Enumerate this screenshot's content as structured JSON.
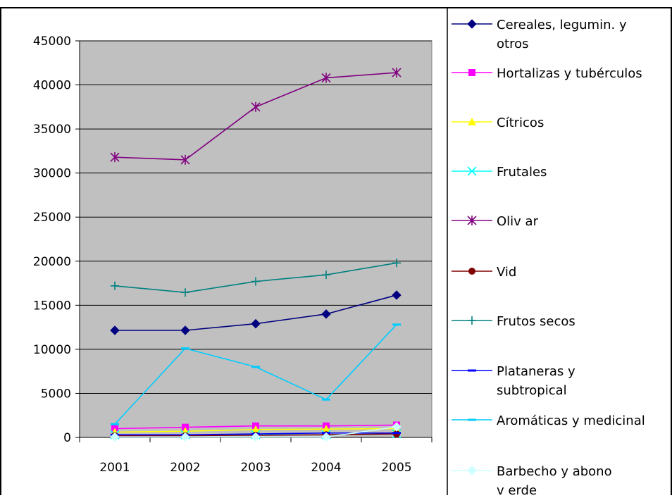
{
  "chart_data": {
    "type": "line",
    "categories": [
      "2001",
      "2002",
      "2003",
      "2004",
      "2005"
    ],
    "ylim": [
      0,
      45000
    ],
    "yticks": [
      0,
      5000,
      10000,
      15000,
      20000,
      25000,
      30000,
      35000,
      40000,
      45000
    ],
    "grid": true,
    "legend_position": "right",
    "plot_background": "#c0c0c0",
    "series": [
      {
        "name": "Cereales, legumin. y otros",
        "legend_lines": [
          "Cereales, legumin. y",
          "otros"
        ],
        "color": "#000080",
        "marker": "diamond",
        "values": [
          12150,
          12150,
          12900,
          14000,
          16150
        ]
      },
      {
        "name": "Hortalizas y tubérculos",
        "legend_lines": [
          "Hortalizas y tubérculos"
        ],
        "color": "#ff00ff",
        "marker": "square",
        "values": [
          1000,
          1150,
          1300,
          1300,
          1400
        ]
      },
      {
        "name": "Cítricos",
        "legend_lines": [
          "Cítricos"
        ],
        "color": "#ffff00",
        "marker": "triangle",
        "values": [
          600,
          700,
          900,
          950,
          1000
        ]
      },
      {
        "name": "Frutales",
        "legend_lines": [
          "Frutales"
        ],
        "color": "#00ffff",
        "marker": "x",
        "values": [
          300,
          300,
          300,
          300,
          400
        ]
      },
      {
        "name": "Olivar",
        "legend_lines": [
          "Oliv ar"
        ],
        "color": "#800080",
        "marker": "star",
        "values": [
          31800,
          31500,
          37500,
          40800,
          41400
        ]
      },
      {
        "name": "Vid",
        "legend_lines": [
          "Vid"
        ],
        "color": "#800000",
        "marker": "circle",
        "values": [
          200,
          200,
          250,
          300,
          400
        ]
      },
      {
        "name": "Frutos secos",
        "legend_lines": [
          "Frutos secos"
        ],
        "color": "#008080",
        "marker": "plus",
        "values": [
          17200,
          16450,
          17700,
          18450,
          19800
        ]
      },
      {
        "name": "Plataneras y subtropical",
        "legend_lines": [
          "Plataneras y",
          "subtropical"
        ],
        "color": "#0000ff",
        "marker": "dash",
        "values": [
          300,
          300,
          400,
          500,
          500
        ]
      },
      {
        "name": "Aromáticas y medicinal",
        "legend_lines": [
          "Aromáticas y medicinal"
        ],
        "color": "#00ccff",
        "marker": "dash",
        "values": [
          1500,
          10100,
          8000,
          4300,
          12800
        ]
      },
      {
        "name": "Barbecho y abono verde",
        "legend_lines": [
          "Barbecho y abono",
          "v erde"
        ],
        "color": "#ccffff",
        "marker": "diamond",
        "values": [
          50,
          50,
          50,
          50,
          1200
        ]
      }
    ]
  }
}
